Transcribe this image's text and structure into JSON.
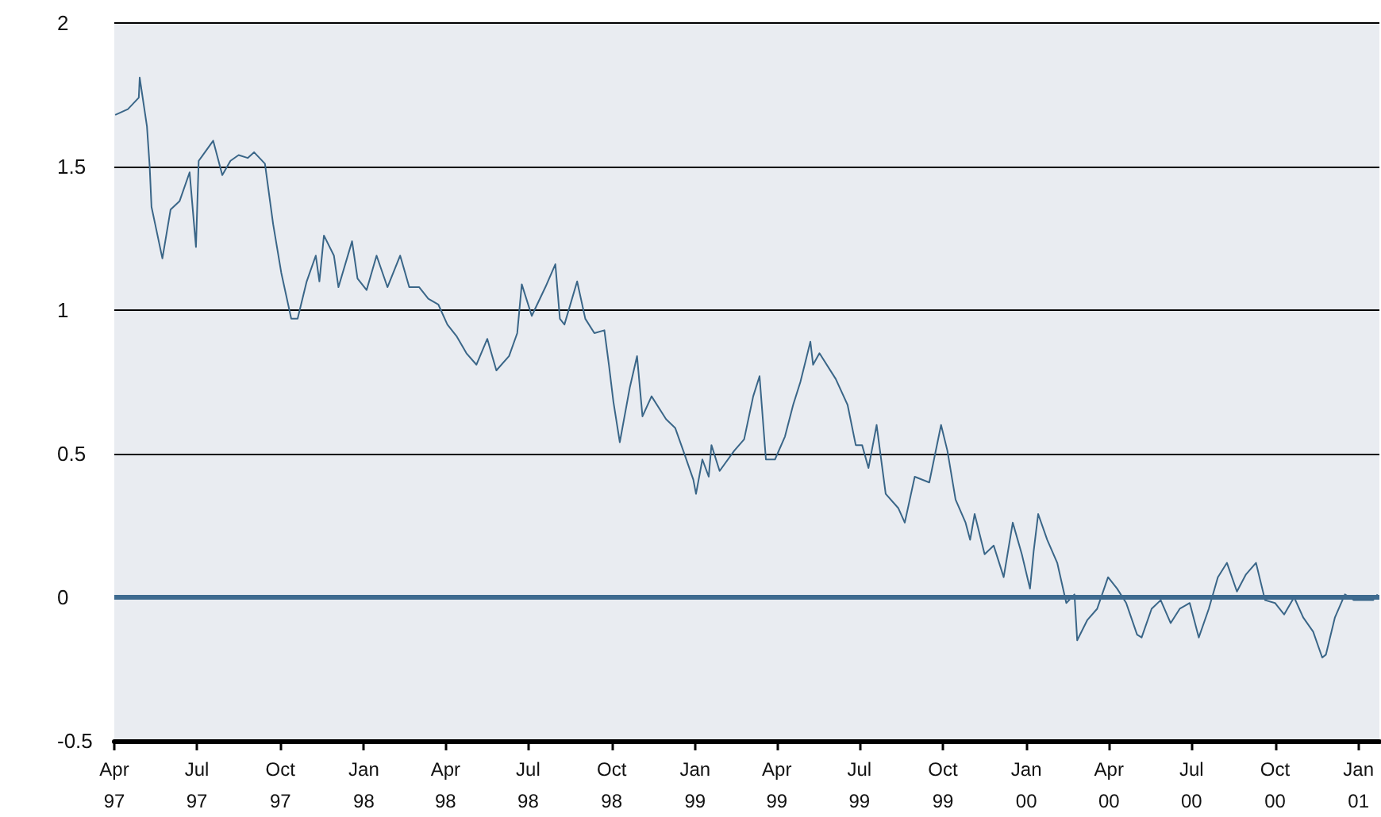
{
  "chart_data": {
    "type": "line",
    "x": [
      "1997-04-02",
      "1997-04-16",
      "1997-04-28",
      "1997-04-29",
      "1997-05-07",
      "1997-05-10",
      "1997-05-12",
      "1997-05-16",
      "1997-05-24",
      "1997-06-02",
      "1997-06-12",
      "1997-06-23",
      "1997-06-30",
      "1997-07-03",
      "1997-07-19",
      "1997-07-29",
      "1997-08-07",
      "1997-08-16",
      "1997-08-26",
      "1997-09-02",
      "1997-09-14",
      "1997-09-23",
      "1997-10-02",
      "1997-10-13",
      "1997-10-20",
      "1997-10-30",
      "1997-11-09",
      "1997-11-13",
      "1997-11-18",
      "1997-11-29",
      "1997-12-04",
      "1997-12-19",
      "1997-12-25",
      "1998-01-04",
      "1998-01-15",
      "1998-01-27",
      "1998-02-10",
      "1998-02-20",
      "1998-03-03",
      "1998-03-13",
      "1998-03-24",
      "1998-04-03",
      "1998-04-13",
      "1998-04-24",
      "1998-05-05",
      "1998-05-17",
      "1998-05-27",
      "1998-06-10",
      "1998-06-19",
      "1998-06-24",
      "1998-07-05",
      "1998-07-20",
      "1998-07-31",
      "1998-08-05",
      "1998-08-10",
      "1998-08-24",
      "1998-09-02",
      "1998-09-12",
      "1998-09-23",
      "1998-09-28",
      "1998-10-03",
      "1998-10-10",
      "1998-10-21",
      "1998-10-29",
      "1998-11-04",
      "1998-11-14",
      "1998-11-30",
      "1998-12-10",
      "1998-12-19",
      "1998-12-30",
      "1999-01-02",
      "1999-01-09",
      "1999-01-16",
      "1999-01-19",
      "1999-01-28",
      "1999-02-13",
      "1999-02-24",
      "1999-03-06",
      "1999-03-13",
      "1999-03-20",
      "1999-03-30",
      "1999-04-10",
      "1999-04-19",
      "1999-04-27",
      "1999-05-08",
      "1999-05-11",
      "1999-05-18",
      "1999-06-05",
      "1999-06-18",
      "1999-06-27",
      "1999-07-04",
      "1999-07-11",
      "1999-07-20",
      "1999-07-30",
      "1999-08-13",
      "1999-08-20",
      "1999-08-31",
      "1999-09-16",
      "1999-09-29",
      "1999-10-06",
      "1999-10-15",
      "1999-10-26",
      "1999-10-31",
      "1999-11-05",
      "1999-11-16",
      "1999-11-26",
      "1999-12-07",
      "1999-12-17",
      "1999-12-27",
      "2000-01-05",
      "2000-01-09",
      "2000-01-14",
      "2000-01-24",
      "2000-02-04",
      "2000-02-14",
      "2000-02-23",
      "2000-02-26",
      "2000-03-08",
      "2000-03-19",
      "2000-03-31",
      "2000-04-10",
      "2000-04-20",
      "2000-05-02",
      "2000-05-07",
      "2000-05-18",
      "2000-05-28",
      "2000-06-08",
      "2000-06-18",
      "2000-06-29",
      "2000-07-09",
      "2000-07-20",
      "2000-07-30",
      "2000-08-09",
      "2000-08-20",
      "2000-08-30",
      "2000-09-10",
      "2000-09-20",
      "2000-10-01",
      "2000-10-11",
      "2000-10-22",
      "2000-11-01",
      "2000-11-12",
      "2000-11-22",
      "2000-11-26",
      "2000-12-06",
      "2000-12-17",
      "2000-12-27",
      "2001-01-07",
      "2001-01-17",
      "2001-01-22"
    ],
    "series": [
      {
        "color": "#3a6688",
        "values": [
          1.68,
          1.7,
          1.74,
          1.81,
          1.64,
          1.5,
          1.36,
          1.3,
          1.18,
          1.35,
          1.38,
          1.48,
          1.22,
          1.52,
          1.59,
          1.47,
          1.52,
          1.54,
          1.53,
          1.55,
          1.51,
          1.3,
          1.13,
          0.97,
          0.97,
          1.1,
          1.19,
          1.1,
          1.26,
          1.19,
          1.08,
          1.24,
          1.11,
          1.07,
          1.19,
          1.08,
          1.19,
          1.08,
          1.08,
          1.04,
          1.02,
          0.95,
          0.91,
          0.85,
          0.81,
          0.9,
          0.79,
          0.84,
          0.92,
          1.09,
          0.98,
          1.08,
          1.16,
          0.97,
          0.95,
          1.1,
          0.97,
          0.92,
          0.93,
          0.81,
          0.68,
          0.54,
          0.73,
          0.84,
          0.63,
          0.7,
          0.62,
          0.59,
          0.51,
          0.41,
          0.36,
          0.48,
          0.42,
          0.53,
          0.44,
          0.51,
          0.55,
          0.7,
          0.77,
          0.48,
          0.48,
          0.56,
          0.67,
          0.75,
          0.89,
          0.81,
          0.85,
          0.76,
          0.67,
          0.53,
          0.53,
          0.45,
          0.6,
          0.36,
          0.31,
          0.26,
          0.42,
          0.4,
          0.6,
          0.51,
          0.34,
          0.26,
          0.2,
          0.29,
          0.15,
          0.18,
          0.07,
          0.26,
          0.15,
          0.03,
          0.16,
          0.29,
          0.2,
          0.12,
          -0.02,
          0.01,
          -0.15,
          -0.08,
          -0.04,
          0.07,
          0.03,
          -0.02,
          -0.13,
          -0.14,
          -0.04,
          -0.01,
          -0.09,
          -0.04,
          -0.02,
          -0.14,
          -0.04,
          0.07,
          0.12,
          0.02,
          0.08,
          0.12,
          -0.01,
          -0.02,
          -0.06,
          0,
          -0.07,
          -0.12,
          -0.21,
          -0.2,
          -0.07,
          0.01,
          -0.01,
          -0.01,
          -0.01,
          0.01
        ]
      }
    ],
    "xlim": [
      "1997-04-01",
      "2001-01-24"
    ],
    "xticks": [
      {
        "value": "1997-04-01",
        "label": "Apr 97"
      },
      {
        "value": "1997-07-01",
        "label": "Jul 97"
      },
      {
        "value": "1997-10-01",
        "label": "Oct 97"
      },
      {
        "value": "1998-01-01",
        "label": "Jan 98"
      },
      {
        "value": "1998-04-01",
        "label": "Apr 98"
      },
      {
        "value": "1998-07-01",
        "label": "Jul 98"
      },
      {
        "value": "1998-10-01",
        "label": "Oct 98"
      },
      {
        "value": "1999-01-01",
        "label": "Jan 99"
      },
      {
        "value": "1999-04-01",
        "label": "Apr 99"
      },
      {
        "value": "1999-07-01",
        "label": "Jul 99"
      },
      {
        "value": "1999-10-01",
        "label": "Oct 99"
      },
      {
        "value": "2000-01-01",
        "label": "Jan 00"
      },
      {
        "value": "2000-04-01",
        "label": "Apr 00"
      },
      {
        "value": "2000-07-01",
        "label": "Jul 00"
      },
      {
        "value": "2000-10-01",
        "label": "Oct 00"
      },
      {
        "value": "2001-01-01",
        "label": "Jan 01"
      }
    ],
    "ylim": [
      -0.5,
      2
    ],
    "yticks": [
      -0.5,
      0,
      0.5,
      1,
      1.5,
      2
    ],
    "grid": "y",
    "ref_lines": [
      {
        "axis": "y",
        "value": 0,
        "color": "#3d6a8f"
      }
    ]
  }
}
